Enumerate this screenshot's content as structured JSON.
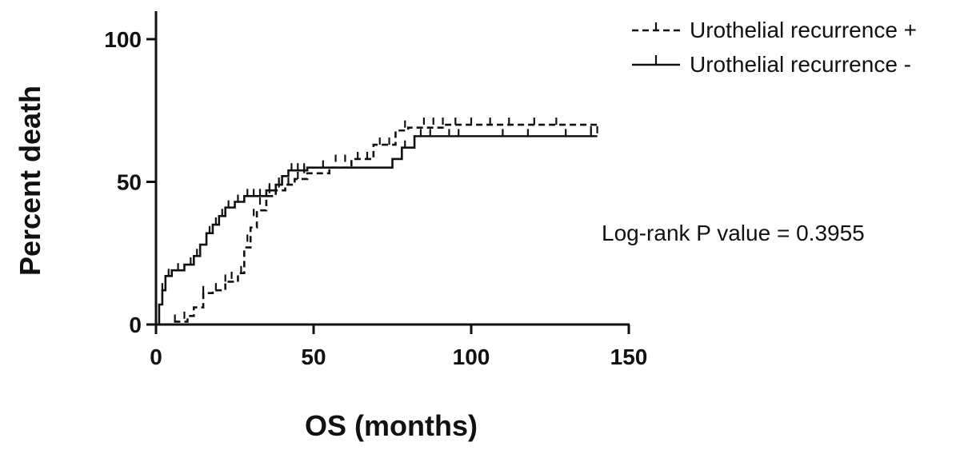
{
  "chart_data": {
    "type": "line",
    "title": "",
    "xlabel": "OS (months)",
    "ylabel": "Percent death",
    "xlim": [
      0,
      150
    ],
    "ylim": [
      0,
      100
    ],
    "xticks": [
      "0",
      "50",
      "100",
      "150"
    ],
    "yticks": [
      "0",
      "50",
      "100"
    ],
    "grid": false,
    "legend_position": "top-right",
    "annotation": "Log-rank P value = 0.3955",
    "series": [
      {
        "name": "Urothelial recurrence +",
        "line_style": "dashed",
        "color": "#111111",
        "steps": [
          [
            0,
            0
          ],
          [
            5,
            1
          ],
          [
            10,
            3
          ],
          [
            12,
            6
          ],
          [
            15,
            11
          ],
          [
            18,
            12
          ],
          [
            22,
            15
          ],
          [
            26,
            18
          ],
          [
            28,
            27
          ],
          [
            30,
            34
          ],
          [
            32,
            40
          ],
          [
            35,
            45
          ],
          [
            38,
            47
          ],
          [
            41,
            49
          ],
          [
            44,
            51
          ],
          [
            48,
            53
          ],
          [
            55,
            55
          ],
          [
            62,
            58
          ],
          [
            69,
            63
          ],
          [
            76,
            68
          ],
          [
            80,
            69
          ],
          [
            92,
            70
          ],
          [
            140,
            70
          ]
        ],
        "censored": [
          [
            6,
            1
          ],
          [
            9,
            2
          ],
          [
            15,
            11
          ],
          [
            19,
            12
          ],
          [
            22,
            15
          ],
          [
            24,
            16
          ],
          [
            27,
            18
          ],
          [
            29,
            29
          ],
          [
            31,
            38
          ],
          [
            33,
            42
          ],
          [
            36,
            46
          ],
          [
            39,
            48
          ],
          [
            42,
            49
          ],
          [
            45,
            51
          ],
          [
            47,
            53
          ],
          [
            53,
            55
          ],
          [
            57,
            57
          ],
          [
            60,
            57
          ],
          [
            64,
            58
          ],
          [
            67,
            58
          ],
          [
            71,
            63
          ],
          [
            74,
            63
          ],
          [
            79,
            69
          ],
          [
            85,
            70
          ],
          [
            88,
            70
          ],
          [
            91,
            70
          ],
          [
            95,
            70
          ],
          [
            100,
            70
          ],
          [
            106,
            70
          ],
          [
            112,
            70
          ],
          [
            120,
            70
          ],
          [
            127,
            70
          ],
          [
            138,
            67
          ],
          [
            140,
            67
          ]
        ]
      },
      {
        "name": "Urothelial recurrence -",
        "line_style": "solid",
        "color": "#111111",
        "steps": [
          [
            0,
            0
          ],
          [
            1,
            7
          ],
          [
            2,
            12
          ],
          [
            3,
            17
          ],
          [
            5,
            19
          ],
          [
            9,
            21
          ],
          [
            12,
            24
          ],
          [
            14,
            28
          ],
          [
            16,
            32
          ],
          [
            18,
            35
          ],
          [
            20,
            38
          ],
          [
            22,
            41
          ],
          [
            25,
            43
          ],
          [
            28,
            45
          ],
          [
            35,
            47
          ],
          [
            38,
            49
          ],
          [
            40,
            52
          ],
          [
            42,
            54
          ],
          [
            48,
            55
          ],
          [
            75,
            58
          ],
          [
            78,
            62
          ],
          [
            82,
            66
          ],
          [
            140,
            66
          ]
        ],
        "censored": [
          [
            2,
            12
          ],
          [
            4,
            17
          ],
          [
            7,
            19
          ],
          [
            11,
            21
          ],
          [
            13,
            24
          ],
          [
            17,
            32
          ],
          [
            19,
            35
          ],
          [
            21,
            38
          ],
          [
            23,
            41
          ],
          [
            26,
            43
          ],
          [
            29,
            45
          ],
          [
            31,
            45
          ],
          [
            33,
            45
          ],
          [
            36,
            47
          ],
          [
            39,
            49
          ],
          [
            43,
            54
          ],
          [
            45,
            54
          ],
          [
            47,
            54
          ],
          [
            79,
            62
          ],
          [
            84,
            66
          ],
          [
            87,
            66
          ],
          [
            93,
            66
          ],
          [
            96,
            66
          ],
          [
            110,
            66
          ],
          [
            118,
            66
          ],
          [
            130,
            66
          ],
          [
            138,
            66
          ]
        ]
      }
    ]
  }
}
